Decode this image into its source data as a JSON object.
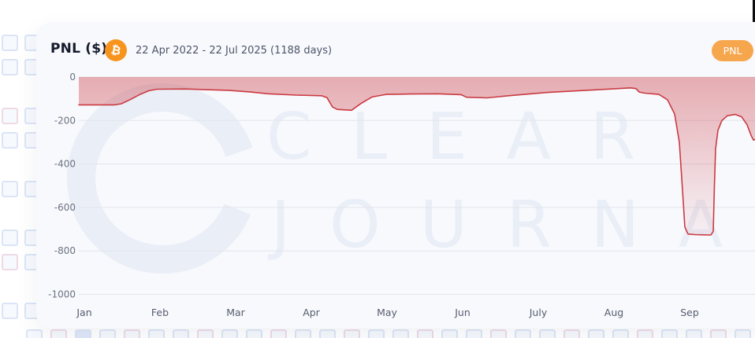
{
  "header": {
    "title": "PNL ($)",
    "date_range": "22 Apr 2022 - 22 Jul 2025 (1188 days)",
    "button_label": "PNL",
    "bitcoin_glyph": "₿"
  },
  "watermark": {
    "line1": "CLEAR",
    "line2": "JOURNA"
  },
  "colors": {
    "accent_orange": "#f6a74e",
    "bitcoin_orange": "#f7941d",
    "line_red": "#cb3a42",
    "fill_red": "rgba(203,58,66,0.40)",
    "card_bg": "#f7f9fd",
    "grid": "#e2e5eb",
    "axis_text": "#6b7280",
    "title_text": "#161b2c"
  },
  "chart_data": {
    "type": "area",
    "title": "PNL ($)",
    "x_tick_labels": [
      "Jan",
      "Feb",
      "Mar",
      "Apr",
      "May",
      "Jun",
      "July",
      "Aug",
      "Sep"
    ],
    "y_ticks": [
      0,
      -200,
      -400,
      -600,
      -800,
      -1000
    ],
    "y_tick_labels": [
      "0",
      "-200",
      "-400",
      "-600",
      "-800",
      "-1000"
    ],
    "ylim": [
      -1000,
      0
    ],
    "grid": true,
    "legend": "none",
    "series": [
      {
        "name": "PNL",
        "color": "#cb3a42",
        "points": [
          [
            -0.073,
            -128
          ],
          [
            0.396,
            -128
          ],
          [
            0.49,
            -123
          ],
          [
            0.604,
            -104
          ],
          [
            0.729,
            -81
          ],
          [
            0.854,
            -63
          ],
          [
            0.958,
            -56
          ],
          [
            1.333,
            -55
          ],
          [
            1.906,
            -61
          ],
          [
            2.2,
            -69
          ],
          [
            2.427,
            -77
          ],
          [
            2.8,
            -83
          ],
          [
            3.135,
            -86
          ],
          [
            3.208,
            -95
          ],
          [
            3.24,
            -114
          ],
          [
            3.281,
            -138
          ],
          [
            3.344,
            -149
          ],
          [
            3.531,
            -153
          ],
          [
            3.656,
            -122
          ],
          [
            3.802,
            -92
          ],
          [
            3.99,
            -80
          ],
          [
            4.3,
            -78
          ],
          [
            4.667,
            -77
          ],
          [
            4.979,
            -81
          ],
          [
            5.052,
            -93
          ],
          [
            5.323,
            -96
          ],
          [
            5.677,
            -84
          ],
          [
            6.125,
            -71
          ],
          [
            6.75,
            -59
          ],
          [
            7.219,
            -50
          ],
          [
            7.292,
            -53
          ],
          [
            7.333,
            -69
          ],
          [
            7.406,
            -74
          ],
          [
            7.594,
            -80
          ],
          [
            7.708,
            -105
          ],
          [
            7.802,
            -170
          ],
          [
            7.865,
            -300
          ],
          [
            7.906,
            -520
          ],
          [
            7.938,
            -690
          ],
          [
            7.979,
            -722
          ],
          [
            8.073,
            -725
          ],
          [
            8.281,
            -727
          ],
          [
            8.313,
            -710
          ],
          [
            8.328,
            -500
          ],
          [
            8.344,
            -330
          ],
          [
            8.375,
            -245
          ],
          [
            8.427,
            -200
          ],
          [
            8.5,
            -178
          ],
          [
            8.604,
            -172
          ],
          [
            8.688,
            -183
          ],
          [
            8.76,
            -220
          ],
          [
            8.813,
            -268
          ],
          [
            8.844,
            -290
          ],
          [
            8.865,
            -287
          ]
        ]
      }
    ]
  }
}
